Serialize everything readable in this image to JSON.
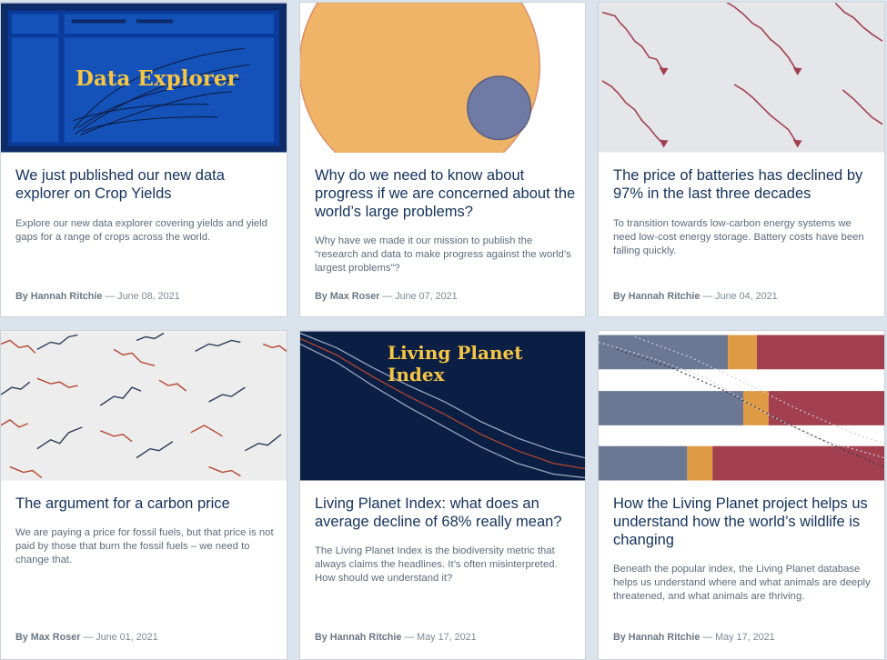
{
  "articles": [
    {
      "thumb_title": "Data Explorer",
      "title": "We just published our new data explorer on Crop Yields",
      "excerpt": "Explore our new data explorer covering yields and yield gaps for a range of crops across the world.",
      "author": "By Hannah Ritchie",
      "date": "— June 08, 2021"
    },
    {
      "title": "Why do we need to know about progress if we are concerned about the world’s large problems?",
      "excerpt": "Why have we made it our mission to publish the “research and data to make progress against the world’s largest problems”?",
      "author": "By Max Roser",
      "date": "— June 07, 2021"
    },
    {
      "title": "The price of batteries has declined by 97% in the last three decades",
      "excerpt": "To transition towards low-carbon energy systems we need low-cost energy storage. Battery costs have been falling quickly.",
      "author": "By Hannah Ritchie",
      "date": "— June 04, 2021"
    },
    {
      "title": "The argument for a carbon price",
      "excerpt": "We are paying a price for fossil fuels, but that price is not paid by those that burn the fossil fuels – we need to change that.",
      "author": "By Max Roser",
      "date": "— June 01, 2021"
    },
    {
      "thumb_title": "Living Planet Index",
      "title": "Living Planet Index: what does an average decline of 68% really mean?",
      "excerpt": "The Living Planet Index is the biodiversity metric that always claims the headlines. It’s often misinterpreted. How should we understand it?",
      "author": "By Hannah Ritchie",
      "date": "— May 17, 2021"
    },
    {
      "title": "How the Living Planet project helps us understand how the world’s wildlife is changing",
      "excerpt": "Beneath the popular index, the Living Planet database helps us understand where and what animals are deeply threatened, and what animals are thriving.",
      "author": "By Hannah Ritchie",
      "date": "— May 17, 2021"
    }
  ],
  "colors": {
    "title": "#12325a",
    "excerpt": "#5b6b7b",
    "navy": "#0b1f44",
    "accent_yellow": "#f6c544",
    "accent_red": "#a3404f",
    "accent_orange": "#df9b43"
  }
}
